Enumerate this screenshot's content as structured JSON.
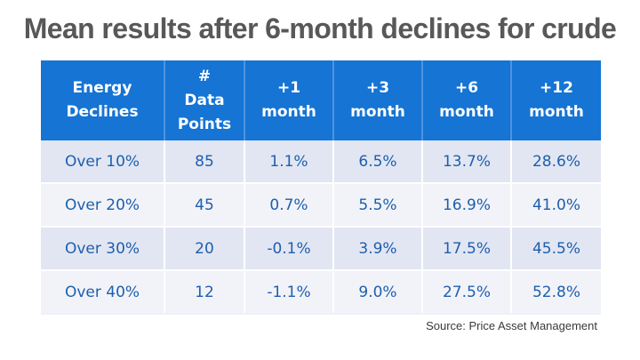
{
  "title": "Mean results after 6-month declines for crude",
  "table": {
    "headers": [
      [
        "Energy",
        "Declines"
      ],
      [
        "#",
        "Data",
        "Points"
      ],
      [
        "+1",
        "month"
      ],
      [
        "+3",
        "month"
      ],
      [
        "+6",
        "month"
      ],
      [
        "+12",
        "month"
      ]
    ],
    "rows": [
      [
        "Over 10%",
        "85",
        "1.1%",
        "6.5%",
        "13.7%",
        "28.6%"
      ],
      [
        "Over 20%",
        "45",
        "0.7%",
        "5.5%",
        "16.9%",
        "41.0%"
      ],
      [
        "Over 30%",
        "20",
        "-0.1%",
        "3.9%",
        "17.5%",
        "45.5%"
      ],
      [
        "Over 40%",
        "12",
        "-1.1%",
        "9.0%",
        "27.5%",
        "52.8%"
      ]
    ]
  },
  "source": "Source: Price Asset Management",
  "colors": {
    "header_bg": "#1574d4",
    "header_text": "#ffffff",
    "cell_text": "#1d5fae",
    "title_text": "#585858"
  }
}
